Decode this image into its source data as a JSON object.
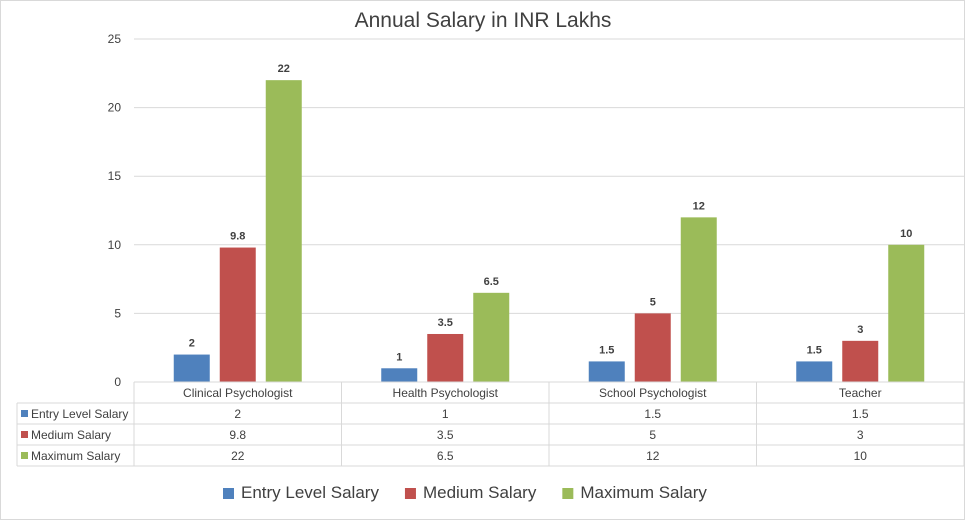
{
  "chart_data": {
    "type": "bar",
    "title": "Annual Salary in INR Lakhs",
    "xlabel": "",
    "ylabel": "",
    "ylim": [
      0,
      25
    ],
    "yticks": [
      0,
      5,
      10,
      15,
      20,
      25
    ],
    "grid": true,
    "legend_position": "bottom",
    "categories": [
      "Clinical Psychologist",
      "Health Psychologist",
      "School Psychologist",
      "Teacher"
    ],
    "series": [
      {
        "name": "Entry Level Salary",
        "color": "#4f81bd",
        "values": [
          2,
          1,
          1.5,
          1.5
        ],
        "labels": [
          "2",
          "1",
          "1.5",
          "1.5"
        ]
      },
      {
        "name": "Medium Salary",
        "color": "#c0504d",
        "values": [
          9.8,
          3.5,
          5,
          3
        ],
        "labels": [
          "9.8",
          "3.5",
          "5",
          "3"
        ]
      },
      {
        "name": "Maximum Salary",
        "color": "#9bbb59",
        "values": [
          22,
          6.5,
          12,
          10
        ],
        "labels": [
          "22",
          "6.5",
          "12",
          "10"
        ]
      }
    ],
    "data_table": true
  }
}
